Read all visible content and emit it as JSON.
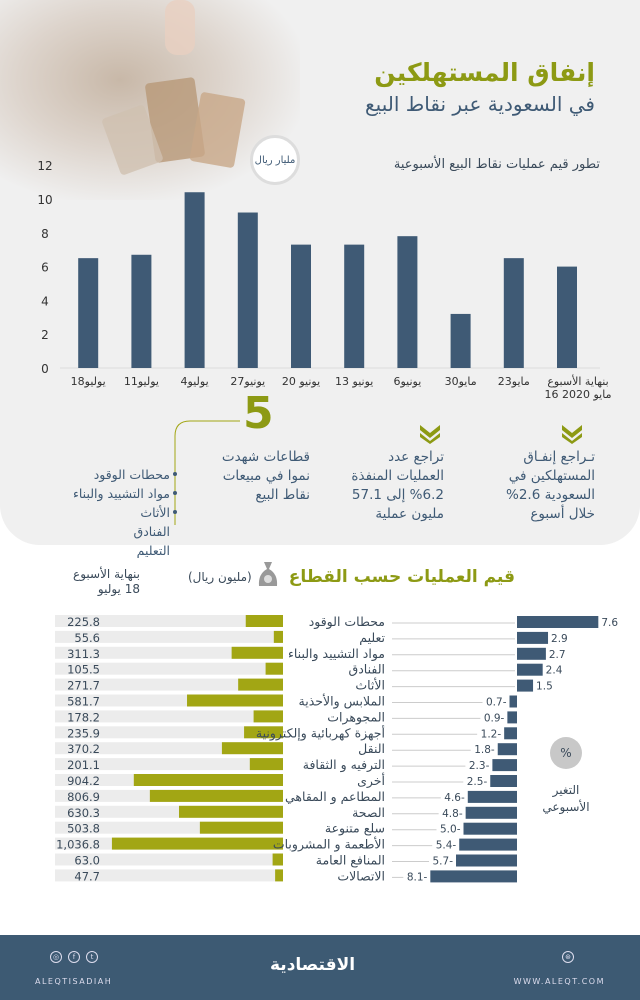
{
  "header": {
    "title": "إنفاق المستهلكين",
    "subtitle": "في السعودية عبر نقاط البيع"
  },
  "colors": {
    "green": "#8d9a14",
    "bar_green": "#a2a614",
    "blue": "#3f5a75",
    "track": "#ececec"
  },
  "chart_data": [
    {
      "type": "bar",
      "title": "تطور قيم عمليات نقاط البيع الأسبوعية",
      "ylabel": "مليار ريال",
      "ylim": [
        0,
        12
      ],
      "yticks": [
        0,
        2,
        4,
        6,
        8,
        10,
        12
      ],
      "categories": [
        "بنهاية الأسبوع 16 مايو 2020",
        "23مايو",
        "30مايو",
        "6يونيو",
        "13 يونيو",
        "20 يونيو",
        "27يونيو",
        "4يوليو",
        "11يوليو",
        "18يوليو"
      ],
      "values": [
        6.0,
        6.5,
        3.2,
        7.8,
        7.3,
        7.3,
        9.2,
        10.4,
        6.7,
        6.5
      ]
    },
    {
      "type": "bar",
      "title": "قيم العمليات حسب القطاع",
      "unit": "(مليون ريال)",
      "value_header": "بنهاية الأسبوع 18 يوليو",
      "change_header": "التغير الأسبوعي",
      "change_unit": "%",
      "categories": [
        "محطات الوقود",
        "تعليم",
        "مواد التشييد والبناء",
        "الفنادق",
        "الأثاث",
        "الملابس والأحذية",
        "المجوهرات",
        "أجهزة كهربائية وإلكترونية",
        "النقل",
        "الترفيه و الثقافة",
        "أخرى",
        "المطاعم و المقاهي",
        "الصحة",
        "سلع متنوعة",
        "الأطعمة و المشروبات",
        "المنافع العامة",
        "الاتصالات"
      ],
      "values": [
        225.8,
        55.6,
        311.3,
        105.5,
        271.7,
        581.7,
        178.2,
        235.9,
        370.2,
        201.1,
        904.2,
        806.9,
        630.3,
        503.8,
        1036.8,
        63.0,
        47.7
      ],
      "value_labels": [
        "225.8",
        "55.6",
        "311.3",
        "105.5",
        "271.7",
        "581.7",
        "178.2",
        "235.9",
        "370.2",
        "201.1",
        "904.2",
        "806.9",
        "630.3",
        "503.8",
        "1,036.8",
        "63.0",
        "47.7"
      ],
      "weekly_change": [
        7.6,
        2.9,
        2.7,
        2.4,
        1.5,
        -0.7,
        -0.9,
        -1.2,
        -1.8,
        -2.3,
        -2.5,
        -4.6,
        -4.8,
        -5.0,
        -5.4,
        -5.7,
        -8.1
      ],
      "change_labels": [
        "7.6",
        "2.9",
        "2.7",
        "2.4",
        "1.5",
        "0.7-",
        "0.9-",
        "1.2-",
        "1.8-",
        "2.3-",
        "2.5-",
        "4.6-",
        "4.8-",
        "5.0-",
        "5.4-",
        "5.7-",
        "8.1-"
      ]
    }
  ],
  "stats": {
    "spending": "تـراجع إنفـاق المستهلكين في السعودية 2.6% خلال أسبوع",
    "transactions": "تراجع عدد العمليات المنفذة 6.2% إلى 57.1 مليون عملية",
    "growth_number": "5",
    "growth_text": "قطاعات شهدت نموا في مبيعات نقاط البيع",
    "growth_sectors": [
      "محطات الوقود",
      "مواد التشييد والبناء",
      "الأثاث",
      "الفنادق",
      "التعليم"
    ]
  },
  "footer": {
    "brand": "الاقتصادية",
    "handle": "ALEQTISADIAH",
    "site": "WWW.ALEQT.COM",
    "icons": [
      "instagram-icon",
      "facebook-icon",
      "twitter-icon",
      "globe-icon"
    ]
  }
}
